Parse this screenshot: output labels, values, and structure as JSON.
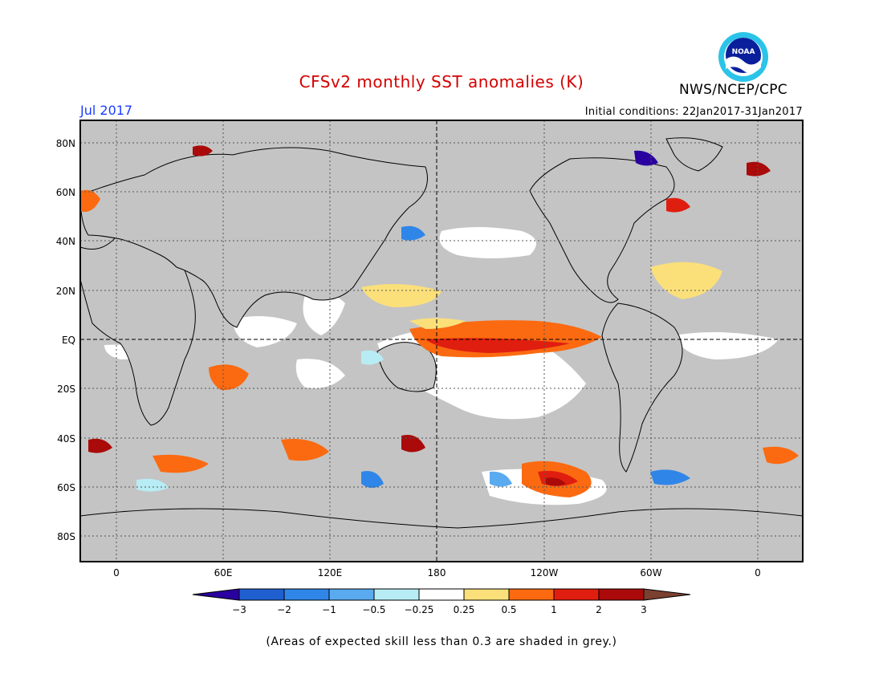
{
  "title": "CFSv2 monthly SST anomalies (K)",
  "org": "NWS/NCEP/CPC",
  "logo_text": "NOAA",
  "period": "Jul 2017",
  "initial_conditions": "Initial conditions: 22Jan2017-31Jan2017",
  "footnote": "(Areas of expected skill less than 0.3 are shaded in grey.)",
  "lat_labels": [
    "80N",
    "60N",
    "40N",
    "20N",
    "EQ",
    "20S",
    "40S",
    "60S",
    "80S"
  ],
  "lon_labels": [
    "0",
    "60E",
    "120E",
    "180",
    "120W",
    "60W",
    "0"
  ],
  "colorbar": {
    "labels": [
      "−3",
      "−2",
      "−1",
      "−0.5",
      "−0.25",
      "0.25",
      "0.5",
      "1",
      "2",
      "3"
    ],
    "colors": [
      "#2a00a0",
      "#1f5fd0",
      "#2f86e8",
      "#5aaaf0",
      "#b8ecf4",
      "#ffffff",
      "#fbe07a",
      "#fb6a10",
      "#e01e10",
      "#aa0a0a",
      "#7a4030"
    ]
  },
  "colors": {
    "grey_mask": "#c4c4c4",
    "warm": "#fb6a10",
    "title": "#d40000"
  }
}
